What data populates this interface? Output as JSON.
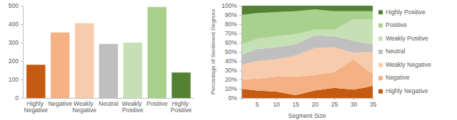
{
  "chart_data": [
    {
      "type": "bar",
      "categories": [
        "Highly Negative",
        "Negative",
        "Weakly Negative",
        "Neutral",
        "Weakly Positive",
        "Positive",
        "Highly Positive"
      ],
      "values": [
        180,
        355,
        405,
        293,
        300,
        493,
        138
      ],
      "colors": [
        "#c55a11",
        "#f4b183",
        "#f8cbad",
        "#bfbfbf",
        "#c5e0b4",
        "#a9d18e",
        "#548235"
      ],
      "ylim": [
        0,
        500
      ],
      "yticks": [
        0,
        100,
        200,
        300,
        400,
        500
      ],
      "grid": false
    },
    {
      "type": "area",
      "stacked": true,
      "x": [
        1,
        5,
        10,
        15,
        20,
        25,
        30,
        35
      ],
      "series": [
        {
          "name": "Highly Negative",
          "color": "#c55a11",
          "values": [
            10,
            8,
            7,
            3,
            8,
            11,
            9,
            13
          ]
        },
        {
          "name": "Negative",
          "color": "#f4b183",
          "values": [
            10,
            13,
            16,
            20,
            17,
            17,
            33,
            13
          ]
        },
        {
          "name": "Weakly Negative",
          "color": "#f8cbad",
          "values": [
            16,
            19,
            19,
            23,
            29,
            27,
            7,
            24
          ]
        },
        {
          "name": "Neutral",
          "color": "#bfbfbf",
          "values": [
            11,
            13,
            13,
            12,
            14,
            12,
            13,
            8
          ]
        },
        {
          "name": "Weakly Positive",
          "color": "#c5e0b4",
          "values": [
            11,
            11,
            12,
            11,
            6,
            7,
            23,
            27
          ]
        },
        {
          "name": "Positive",
          "color": "#a9d18e",
          "values": [
            32,
            28,
            26,
            25,
            22,
            20,
            9,
            9
          ]
        },
        {
          "name": "Highly Positive",
          "color": "#548235",
          "values": [
            10,
            8,
            7,
            6,
            4,
            6,
            6,
            6
          ]
        }
      ],
      "x_label": "Segment Size",
      "y_label": "Percentage of Sentiment Degrees",
      "xlim": [
        1,
        35
      ],
      "xticks": [
        5,
        10,
        15,
        20,
        25,
        30,
        35
      ],
      "ylim": [
        0,
        100
      ],
      "yticks": [
        {
          "value": 0,
          "label": "0%"
        },
        {
          "value": 10,
          "label": "10%"
        },
        {
          "value": 20,
          "label": "20%"
        },
        {
          "value": 30,
          "label": "30%"
        },
        {
          "value": 40,
          "label": "40%"
        },
        {
          "value": 50,
          "label": "50%"
        },
        {
          "value": 60,
          "label": "60%"
        },
        {
          "value": 70,
          "label": "70%"
        },
        {
          "value": 80,
          "label": "80%"
        },
        {
          "value": 90,
          "label": "90%"
        },
        {
          "value": 100,
          "label": "100%"
        }
      ],
      "legend": "right",
      "grid": false
    }
  ]
}
